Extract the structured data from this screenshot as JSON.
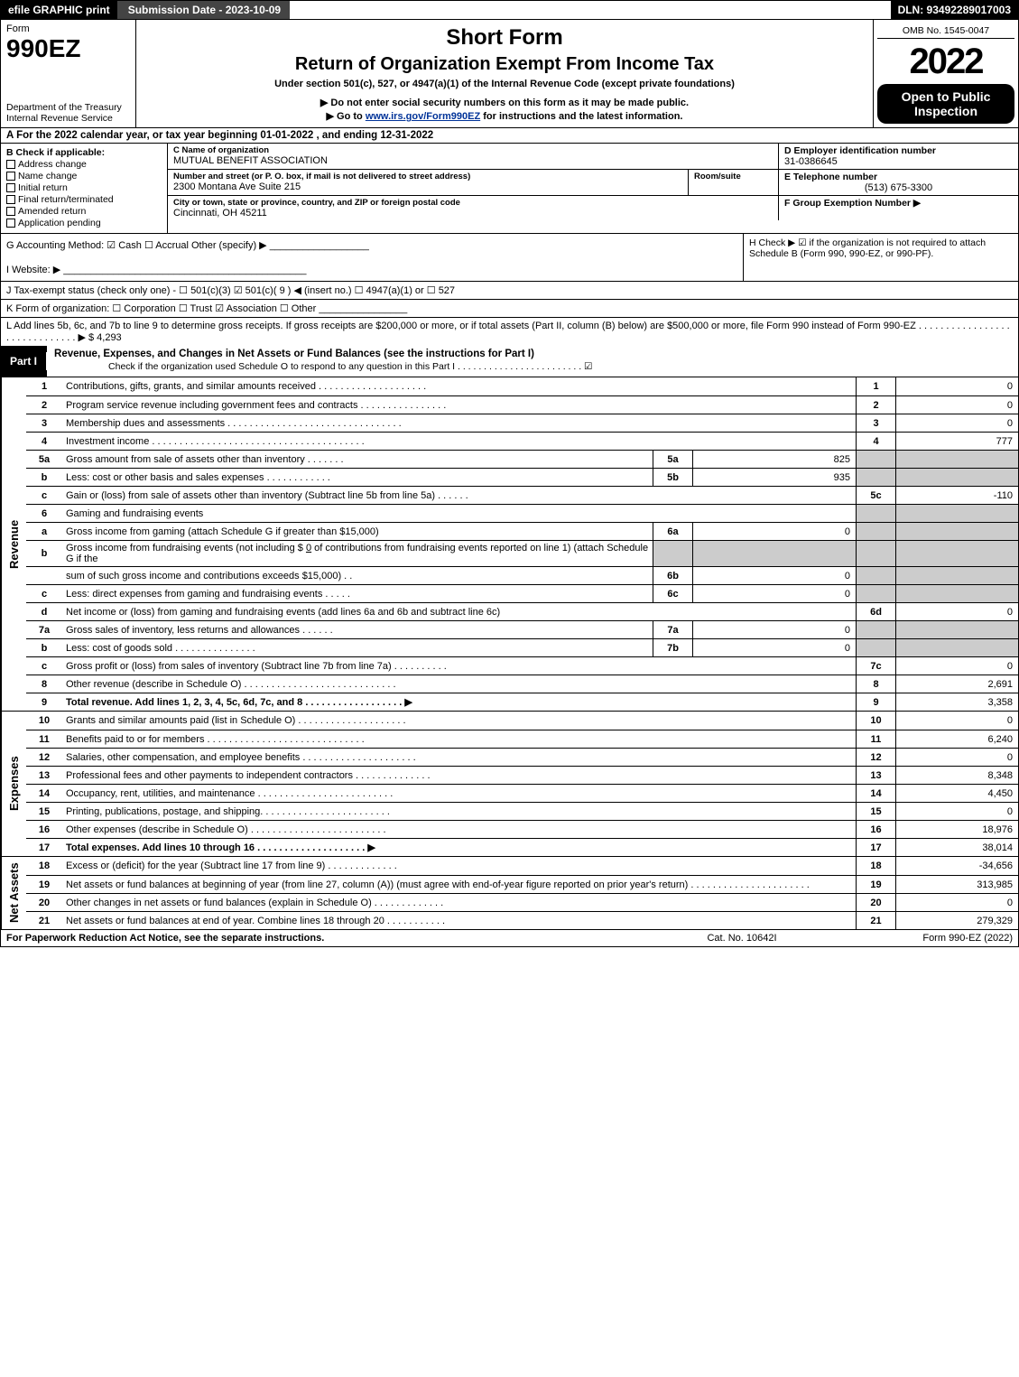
{
  "meta": {
    "efile_label": "efile GRAPHIC print",
    "submission_label": "Submission Date - 2023-10-09",
    "dln": "DLN: 93492289017003",
    "omb": "OMB No. 1545-0047",
    "form_label": "Form",
    "form_number": "990EZ",
    "dept": "Department of the Treasury",
    "irs": "Internal Revenue Service",
    "short_form": "Short Form",
    "return_title": "Return of Organization Exempt From Income Tax",
    "under_section": "Under section 501(c), 527, or 4947(a)(1) of the Internal Revenue Code (except private foundations)",
    "ssn_note": "▶ Do not enter social security numbers on this form as it may be made public.",
    "goto": "▶ Go to ",
    "goto_link_text": "www.irs.gov/Form990EZ",
    "goto_suffix": " for instructions and the latest information.",
    "year": "2022",
    "open_to": "Open to Public Inspection"
  },
  "section_a": "A  For the 2022 calendar year, or tax year beginning 01-01-2022 , and ending 12-31-2022",
  "section_b": {
    "label": "B  Check if applicable:",
    "opts": [
      "Address change",
      "Name change",
      "Initial return",
      "Final return/terminated",
      "Amended return",
      "Application pending"
    ]
  },
  "section_c": {
    "name_label": "C Name of organization",
    "name": "MUTUAL BENEFIT ASSOCIATION",
    "addr_label": "Number and street (or P. O. box, if mail is not delivered to street address)",
    "addr": "2300 Montana Ave Suite 215",
    "room_label": "Room/suite",
    "city_label": "City or town, state or province, country, and ZIP or foreign postal code",
    "city": "Cincinnati, OH  45211"
  },
  "section_d": {
    "label": "D Employer identification number",
    "value": "31-0386645"
  },
  "section_e": {
    "label": "E Telephone number",
    "value": "(513) 675-3300"
  },
  "section_f": {
    "label": "F Group Exemption Number   ▶",
    "value": ""
  },
  "section_g": "G Accounting Method:  ☑ Cash  ☐ Accrual  Other (specify) ▶ __________________",
  "section_h": "H  Check ▶ ☑ if the organization is not required to attach Schedule B (Form 990, 990-EZ, or 990-PF).",
  "section_i": "I Website: ▶ ____________________________________________",
  "section_j": "J Tax-exempt status (check only one) - ☐ 501(c)(3) ☑ 501(c)( 9 ) ◀ (insert no.) ☐ 4947(a)(1) or ☐ 527",
  "section_k": "K Form of organization:  ☐ Corporation  ☐ Trust  ☑ Association  ☐ Other  ________________",
  "section_l": "L Add lines 5b, 6c, and 7b to line 9 to determine gross receipts. If gross receipts are $200,000 or more, or if total assets (Part II, column (B) below) are $500,000 or more, file Form 990 instead of Form 990-EZ  . . . . . . . . . . . . . . . . . . . . . . . . . . . . . . ▶ $ 4,293",
  "part1": {
    "tab": "Part I",
    "title": "Revenue, Expenses, and Changes in Net Assets or Fund Balances (see the instructions for Part I)",
    "check_line": "Check if the organization used Schedule O to respond to any question in this Part I . . . . . . . . . . . . . . . . . . . . . . . . ☑",
    "rows": [
      {
        "n": "1",
        "desc": "Contributions, gifts, grants, and similar amounts received  . . . . . . . . . . . . . . . . . . . .",
        "box": "1",
        "val": "0"
      },
      {
        "n": "2",
        "desc": "Program service revenue including government fees and contracts  . . . . . . . . . . . . . . . .",
        "box": "2",
        "val": "0"
      },
      {
        "n": "3",
        "desc": "Membership dues and assessments  . . . . . . . . . . . . . . . . . . . . . . . . . . . . . . . .",
        "box": "3",
        "val": "0"
      },
      {
        "n": "4",
        "desc": "Investment income  . . . . . . . . . . . . . . . . . . . . . . . . . . . . . . . . . . . . . . .",
        "box": "4",
        "val": "777"
      }
    ],
    "sub_rows": {
      "r5a": {
        "n": "5a",
        "desc": "Gross amount from sale of assets other than inventory  . . . . . . .",
        "sn": "5a",
        "sv": "825"
      },
      "r5b": {
        "n": "b",
        "desc": "Less: cost or other basis and sales expenses  . . . . . . . . . . . .",
        "sn": "5b",
        "sv": "935"
      },
      "r5c": {
        "n": "c",
        "desc": "Gain or (loss) from sale of assets other than inventory (Subtract line 5b from line 5a)  . . . . . .",
        "box": "5c",
        "val": "-110"
      },
      "r6": {
        "n": "6",
        "desc": "Gaming and fundraising events"
      },
      "r6a": {
        "n": "a",
        "desc": "Gross income from gaming (attach Schedule G if greater than $15,000)",
        "sn": "6a",
        "sv": "0"
      },
      "r6b_pre": {
        "n": "b",
        "desc": "Gross income from fundraising events (not including $ ",
        "desc2": "0",
        "desc3": "            of contributions from fundraising events reported on line 1) (attach Schedule G if the"
      },
      "r6b": {
        "desc": "sum of such gross income and contributions exceeds $15,000)   . .",
        "sn": "6b",
        "sv": "0"
      },
      "r6c": {
        "n": "c",
        "desc": "Less: direct expenses from gaming and fundraising events  . . . . .",
        "sn": "6c",
        "sv": "0"
      },
      "r6d": {
        "n": "d",
        "desc": "Net income or (loss) from gaming and fundraising events (add lines 6a and 6b and subtract line 6c)",
        "box": "6d",
        "val": "0"
      },
      "r7a": {
        "n": "7a",
        "desc": "Gross sales of inventory, less returns and allowances  . . . . . .",
        "sn": "7a",
        "sv": "0"
      },
      "r7b": {
        "n": "b",
        "desc": "Less: cost of goods sold     . . . . . . . . . . . . . . .",
        "sn": "7b",
        "sv": "0"
      },
      "r7c": {
        "n": "c",
        "desc": "Gross profit or (loss) from sales of inventory (Subtract line 7b from line 7a)  . . . . . . . . . .",
        "box": "7c",
        "val": "0"
      },
      "r8": {
        "n": "8",
        "desc": "Other revenue (describe in Schedule O)  . . . . . . . . . . . . . . . . . . . . . . . . . . . .",
        "box": "8",
        "val": "2,691"
      },
      "r9": {
        "n": "9",
        "desc": "Total revenue. Add lines 1, 2, 3, 4, 5c, 6d, 7c, and 8  . . . . . . . . . . . . . . . . . .    ▶",
        "box": "9",
        "val": "3,358"
      }
    },
    "expense_rows": [
      {
        "n": "10",
        "desc": "Grants and similar amounts paid (list in Schedule O)  . . . . . . . . . . . . . . . . . . . .",
        "box": "10",
        "val": "0"
      },
      {
        "n": "11",
        "desc": "Benefits paid to or for members     . . . . . . . . . . . . . . . . . . . . . . . . . . . . .",
        "box": "11",
        "val": "6,240"
      },
      {
        "n": "12",
        "desc": "Salaries, other compensation, and employee benefits . . . . . . . . . . . . . . . . . . . . .",
        "box": "12",
        "val": "0"
      },
      {
        "n": "13",
        "desc": "Professional fees and other payments to independent contractors  . . . . . . . . . . . . . .",
        "box": "13",
        "val": "8,348"
      },
      {
        "n": "14",
        "desc": "Occupancy, rent, utilities, and maintenance . . . . . . . . . . . . . . . . . . . . . . . . .",
        "box": "14",
        "val": "4,450"
      },
      {
        "n": "15",
        "desc": "Printing, publications, postage, and shipping.  . . . . . . . . . . . . . . . . . . . . . . .",
        "box": "15",
        "val": "0"
      },
      {
        "n": "16",
        "desc": "Other expenses (describe in Schedule O)    . . . . . . . . . . . . . . . . . . . . . . . . .",
        "box": "16",
        "val": "18,976"
      },
      {
        "n": "17",
        "desc": "Total expenses. Add lines 10 through 16    . . . . . . . . . . . . . . . . . . . .     ▶",
        "box": "17",
        "val": "38,014"
      }
    ],
    "net_rows": [
      {
        "n": "18",
        "desc": "Excess or (deficit) for the year (Subtract line 17 from line 9)        . . . . . . . . . . . . .",
        "box": "18",
        "val": "-34,656"
      },
      {
        "n": "19",
        "desc": "Net assets or fund balances at beginning of year (from line 27, column (A)) (must agree with end-of-year figure reported on prior year's return) . . . . . . . . . . . . . . . . . . . . . .",
        "box": "19",
        "val": "313,985"
      },
      {
        "n": "20",
        "desc": "Other changes in net assets or fund balances (explain in Schedule O) . . . . . . . . . . . . .",
        "box": "20",
        "val": "0"
      },
      {
        "n": "21",
        "desc": "Net assets or fund balances at end of year. Combine lines 18 through 20 . . . . . . . . . . .",
        "box": "21",
        "val": "279,329"
      }
    ],
    "vert_labels": {
      "revenue": "Revenue",
      "expenses": "Expenses",
      "net": "Net Assets"
    }
  },
  "footer": {
    "left": "For Paperwork Reduction Act Notice, see the separate instructions.",
    "mid": "Cat. No. 10642I",
    "right": "Form 990-EZ (2022)"
  },
  "colors": {
    "black": "#000000",
    "gray_header": "#444444",
    "gray_fill": "#cccccc",
    "link": "#003399"
  }
}
